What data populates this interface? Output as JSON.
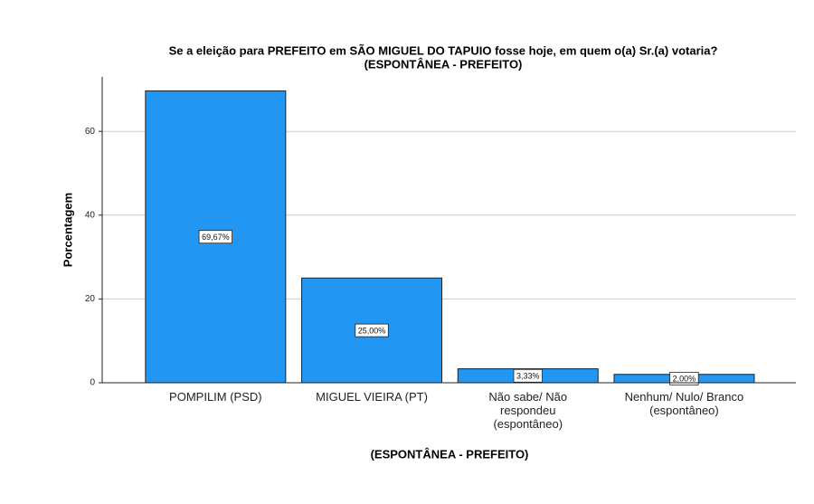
{
  "chart_data": {
    "type": "bar",
    "title": [
      "Se a eleição para PREFEITO em SÃO MIGUEL DO TAPUIO fosse hoje, em quem o(a) Sr.(a) votaria?",
      "(ESPONTÂNEA  - PREFEITO)"
    ],
    "x_label": "(ESPONTÂNEA  - PREFEITO)",
    "y_label": "Porcentagem",
    "categories": [
      "POMPILIM (PSD)",
      "MIGUEL VIEIRA (PT)",
      "Não sabe/ Não respondeu (espontâneo)",
      "Nenhum/ Nulo/ Branco (espontâneo)"
    ],
    "values": [
      69.67,
      25,
      3.33,
      2
    ],
    "value_labels": [
      "69,67%",
      "25,00%",
      "3,33%",
      "2,00%"
    ],
    "color": "#2196f3",
    "ylim": [
      0,
      73
    ],
    "yticks": [
      0,
      20,
      40,
      60
    ],
    "grid": true
  }
}
